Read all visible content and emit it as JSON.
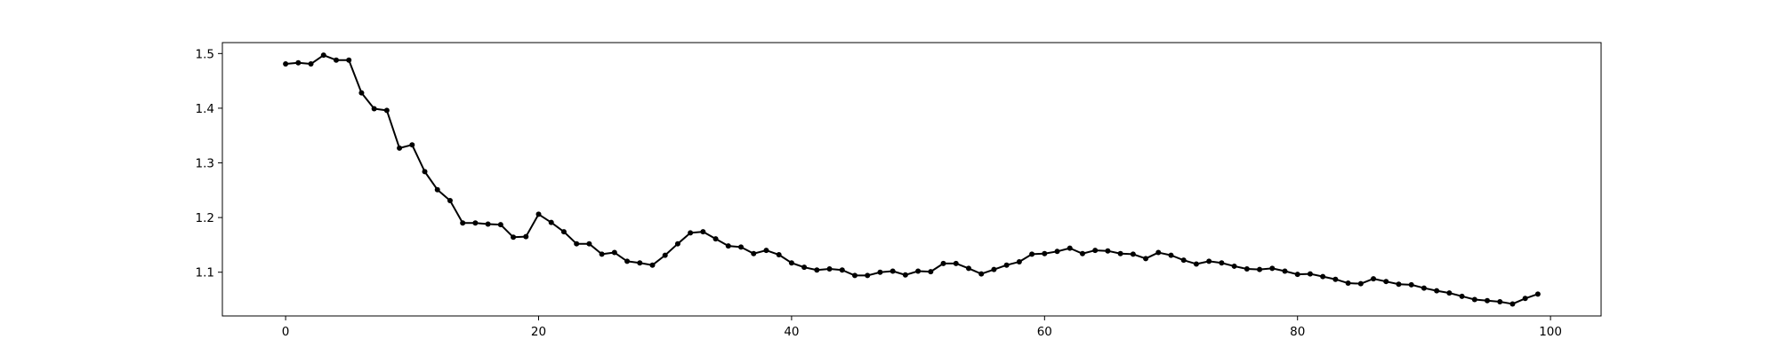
{
  "chart_data": {
    "type": "line",
    "title": "",
    "xlabel": "",
    "ylabel": "",
    "xlim": [
      -5,
      104
    ],
    "ylim": [
      1.02,
      1.52
    ],
    "xticks": [
      0,
      20,
      40,
      60,
      80,
      100
    ],
    "yticks": [
      1.1,
      1.2,
      1.3,
      1.4,
      1.5
    ],
    "xtick_labels": [
      "0",
      "20",
      "40",
      "60",
      "80",
      "100"
    ],
    "ytick_labels": [
      "1.1",
      "1.2",
      "1.3",
      "1.4",
      "1.5"
    ],
    "grid": false,
    "legend": "none",
    "series": [
      {
        "color": "#000000",
        "marker": "circle",
        "x": [
          0,
          1,
          2,
          3,
          4,
          5,
          6,
          7,
          8,
          9,
          10,
          11,
          12,
          13,
          14,
          15,
          16,
          17,
          18,
          19,
          20,
          21,
          22,
          23,
          24,
          25,
          26,
          27,
          28,
          29,
          30,
          31,
          32,
          33,
          34,
          35,
          36,
          37,
          38,
          39,
          40,
          41,
          42,
          43,
          44,
          45,
          46,
          47,
          48,
          49,
          50,
          51,
          52,
          53,
          54,
          55,
          56,
          57,
          58,
          59,
          60,
          61,
          62,
          63,
          64,
          65,
          66,
          67,
          68,
          69,
          70,
          71,
          72,
          73,
          74,
          75,
          76,
          77,
          78,
          79,
          80,
          81,
          82,
          83,
          84,
          85,
          86,
          87,
          88,
          89,
          90,
          91,
          92,
          93,
          94,
          95,
          96,
          97,
          98,
          99
        ],
        "values": [
          1.481,
          1.483,
          1.481,
          1.497,
          1.488,
          1.488,
          1.428,
          1.399,
          1.396,
          1.327,
          1.333,
          1.284,
          1.251,
          1.231,
          1.19,
          1.19,
          1.188,
          1.187,
          1.164,
          1.165,
          1.206,
          1.191,
          1.174,
          1.152,
          1.152,
          1.133,
          1.136,
          1.12,
          1.117,
          1.113,
          1.131,
          1.152,
          1.172,
          1.174,
          1.161,
          1.148,
          1.146,
          1.134,
          1.14,
          1.132,
          1.117,
          1.109,
          1.104,
          1.106,
          1.104,
          1.094,
          1.094,
          1.1,
          1.102,
          1.095,
          1.102,
          1.101,
          1.116,
          1.116,
          1.107,
          1.097,
          1.105,
          1.113,
          1.119,
          1.133,
          1.134,
          1.138,
          1.144,
          1.134,
          1.14,
          1.139,
          1.134,
          1.133,
          1.125,
          1.136,
          1.131,
          1.122,
          1.115,
          1.12,
          1.117,
          1.111,
          1.106,
          1.105,
          1.107,
          1.102,
          1.096,
          1.097,
          1.092,
          1.087,
          1.08,
          1.079,
          1.088,
          1.083,
          1.078,
          1.077,
          1.071,
          1.066,
          1.062,
          1.056,
          1.05,
          1.048,
          1.046,
          1.042,
          1.052,
          1.06
        ]
      }
    ]
  }
}
